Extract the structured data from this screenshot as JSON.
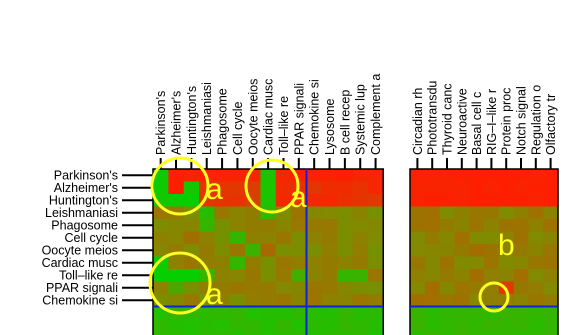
{
  "chart_data": {
    "type": "heatmap",
    "panels": [
      {
        "columns": [
          "Parkinson's",
          "Alzheimer's",
          "Huntington's",
          "Leishmaniasi",
          "Phagosome",
          "Cell cycle",
          "Oocyte meios",
          "Cardiac musc",
          "Toll–like re",
          "PPAR signali",
          "Chemokine si",
          "Lysosome",
          "B cell recep",
          "Systemic lup",
          "Complement a"
        ]
      },
      {
        "columns": [
          "Circadian rh",
          "Phototransdu",
          "Thyroid canc",
          "Neuroactive",
          "Basal cell c",
          "RIG–I–like r",
          "Protein proc",
          "Notch signal",
          "Regulation o",
          "Olfactory tr"
        ]
      }
    ],
    "rows": [
      "Parkinson's",
      "Alzheimer's",
      "Huntington's",
      "Leishmaniasi",
      "Phagosome",
      "Cell cycle",
      "Oocyte meios",
      "Cardiac musc",
      "Toll–like re",
      "PPAR signali",
      "Chemokine si"
    ],
    "color_scale": {
      "high": "#ff1a00",
      "mid": "#7f8c00",
      "low": "#00d400"
    },
    "divider_color": "#1020e0",
    "annotations": [
      {
        "text": "a",
        "color": "#ffff22"
      },
      {
        "text": "a",
        "color": "#ffff22"
      },
      {
        "text": "a",
        "color": "#ffff22"
      },
      {
        "text": "b",
        "color": "#ffff22"
      }
    ]
  }
}
